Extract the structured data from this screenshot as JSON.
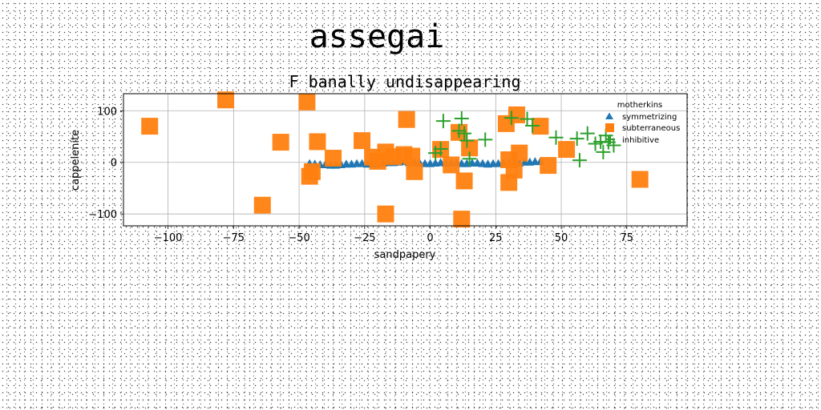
{
  "suptitle": "assegai",
  "chart_data": {
    "type": "scatter",
    "title": "F banally undisappearing",
    "xlabel": "sandpapery",
    "ylabel": "cappelenite",
    "xlim": [
      -117,
      98
    ],
    "ylim": [
      -123,
      133
    ],
    "xticks": [
      -100,
      -75,
      -50,
      -25,
      0,
      25,
      50,
      75
    ],
    "yticks": [
      -100,
      0,
      100
    ],
    "xtick_labels": [
      "−100",
      "−75",
      "−50",
      "−25",
      "0",
      "25",
      "50",
      "75"
    ],
    "ytick_labels": [
      "−100",
      "0",
      "100"
    ],
    "grid": true,
    "legend": {
      "title": "motherkins",
      "placement": "top-right"
    },
    "series": [
      {
        "name": "symmetrizing",
        "marker": "triangle",
        "color": "#1f77b4",
        "points": [
          [
            -46,
            -3
          ],
          [
            -44,
            -4
          ],
          [
            -42,
            -5
          ],
          [
            -40,
            -5
          ],
          [
            -38,
            -6
          ],
          [
            -36,
            -6
          ],
          [
            -34,
            -5
          ],
          [
            -32,
            -4
          ],
          [
            -30,
            -4
          ],
          [
            -28,
            -3
          ],
          [
            -26,
            -3
          ],
          [
            -24,
            -4
          ],
          [
            -22,
            -4
          ],
          [
            -20,
            -3
          ],
          [
            -18,
            -2
          ],
          [
            -16,
            -1
          ],
          [
            -14,
            -1
          ],
          [
            -12,
            0
          ],
          [
            -10,
            1
          ],
          [
            -8,
            -1
          ],
          [
            -6,
            -1
          ],
          [
            -4,
            -2
          ],
          [
            -2,
            -3
          ],
          [
            0,
            -3
          ],
          [
            2,
            -2
          ],
          [
            4,
            -1
          ],
          [
            6,
            -2
          ],
          [
            8,
            -2
          ],
          [
            10,
            -2
          ],
          [
            12,
            -3
          ],
          [
            14,
            -3
          ],
          [
            16,
            -2
          ],
          [
            18,
            -2
          ],
          [
            20,
            -3
          ],
          [
            22,
            -4
          ],
          [
            24,
            -3
          ],
          [
            26,
            -3
          ],
          [
            28,
            -2
          ],
          [
            30,
            -1
          ],
          [
            32,
            -1
          ],
          [
            34,
            -2
          ],
          [
            36,
            0
          ],
          [
            38,
            0
          ],
          [
            40,
            1
          ],
          [
            42,
            1
          ]
        ]
      },
      {
        "name": "subterraneous",
        "marker": "square",
        "color": "#ff7f0e",
        "points": [
          [
            -107,
            70
          ],
          [
            -78,
            121
          ],
          [
            -64,
            -83
          ],
          [
            -57,
            39
          ],
          [
            -47,
            117
          ],
          [
            -46,
            -27
          ],
          [
            -45,
            -18
          ],
          [
            -43,
            40
          ],
          [
            -37,
            8
          ],
          [
            -26,
            42
          ],
          [
            -22,
            10
          ],
          [
            -20,
            2
          ],
          [
            -17,
            20
          ],
          [
            -17,
            -100
          ],
          [
            -14,
            11
          ],
          [
            -10,
            15
          ],
          [
            -9,
            83
          ],
          [
            -7,
            12
          ],
          [
            -6,
            -18
          ],
          [
            4,
            25
          ],
          [
            8,
            -5
          ],
          [
            11,
            58
          ],
          [
            12,
            -110
          ],
          [
            13,
            -36
          ],
          [
            15,
            28
          ],
          [
            29,
            75
          ],
          [
            30,
            -39
          ],
          [
            30,
            5
          ],
          [
            32,
            -15
          ],
          [
            33,
            92
          ],
          [
            34,
            18
          ],
          [
            42,
            70
          ],
          [
            45,
            -6
          ],
          [
            52,
            25
          ],
          [
            80,
            -33
          ]
        ]
      },
      {
        "name": "inhibitive",
        "marker": "plus",
        "color": "#2ca02c",
        "points": [
          [
            2,
            18
          ],
          [
            4,
            26
          ],
          [
            5,
            80
          ],
          [
            11,
            61
          ],
          [
            12,
            85
          ],
          [
            13,
            56
          ],
          [
            14,
            42
          ],
          [
            15,
            7
          ],
          [
            21,
            44
          ],
          [
            31,
            86
          ],
          [
            37,
            84
          ],
          [
            39,
            71
          ],
          [
            48,
            48
          ],
          [
            56,
            46
          ],
          [
            57,
            4
          ],
          [
            60,
            56
          ],
          [
            63,
            36
          ],
          [
            65,
            40
          ],
          [
            66,
            20
          ],
          [
            67,
            52
          ],
          [
            68,
            39
          ],
          [
            70,
            33
          ]
        ]
      }
    ]
  }
}
